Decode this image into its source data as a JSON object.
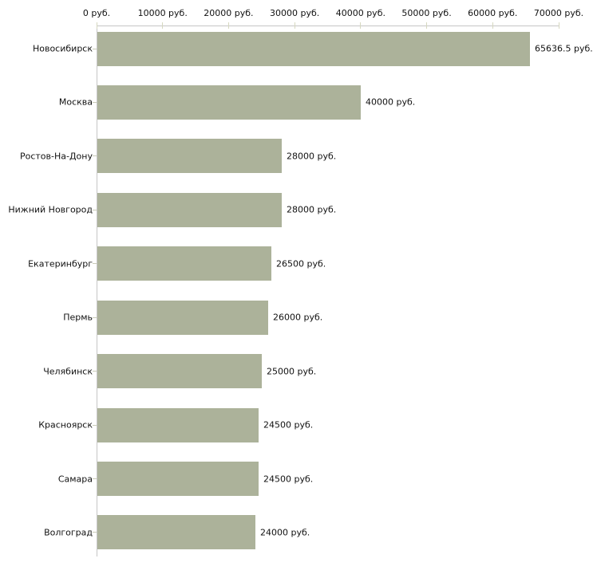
{
  "chart_data": {
    "type": "bar",
    "orientation": "horizontal",
    "title": "",
    "xlabel": "",
    "ylabel": "",
    "unit": "руб.",
    "xlim": [
      0,
      70000
    ],
    "grid": false,
    "legend": false,
    "categories": [
      "Новосибирск",
      "Москва",
      "Ростов-На-Дону",
      "Нижний Новгород",
      "Екатеринбург",
      "Пермь",
      "Челябинск",
      "Красноярск",
      "Самара",
      "Волгоград"
    ],
    "values": [
      65636.5,
      40000,
      28000,
      28000,
      26500,
      26000,
      25000,
      24500,
      24500,
      24000
    ],
    "value_labels": [
      "65636.5 руб.",
      "40000 руб.",
      "28000 руб.",
      "28000 руб.",
      "26500 руб.",
      "26000 руб.",
      "25000 руб.",
      "24500 руб.",
      "24500 руб.",
      "24000 руб."
    ],
    "x_tick_values": [
      0,
      10000,
      20000,
      30000,
      40000,
      50000,
      60000,
      70000
    ],
    "x_tick_labels": [
      "0 руб.",
      "10000 руб.",
      "20000 руб.",
      "30000 руб.",
      "40000 руб.",
      "50000 руб.",
      "60000 руб.",
      "70000 руб."
    ],
    "colors": {
      "bar_fill": "#acb29a",
      "axis_line": "#c6c6c6",
      "x_tick_mark": "#d6d8c0",
      "category_tick_mark": "#c9cbb8",
      "text": "#111111",
      "background": "#ffffff"
    }
  }
}
